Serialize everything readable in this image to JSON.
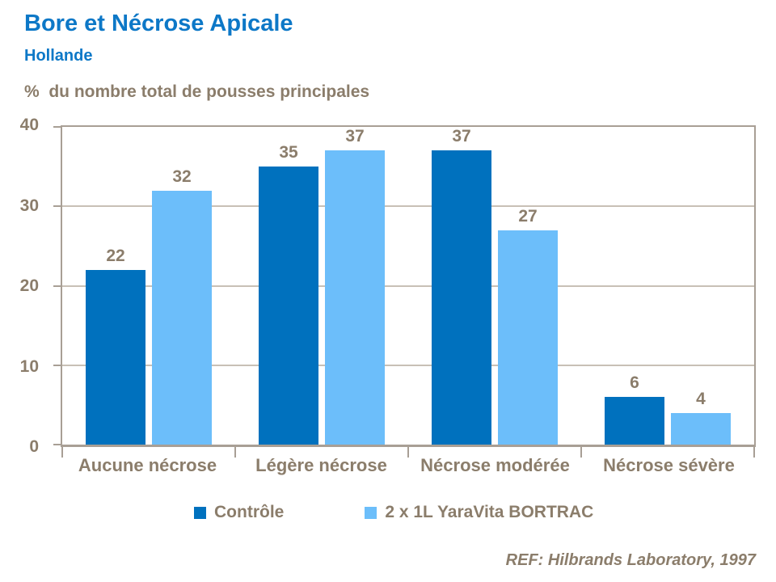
{
  "slide": {
    "title": "Bore et Nécrose Apicale",
    "subtitle": "Hollande",
    "axis_title": "%  du nombre total de pousses principales",
    "reference": "REF: Hilbrands Laboratory, 1997"
  },
  "colors": {
    "title_blue": "#0d78c7",
    "bar_dark": "#0071be",
    "bar_light": "#6cbefa",
    "text_taupe": "#8b7d6b",
    "gridline": "#c8c0b6",
    "axis_border": "#a89f95"
  },
  "chart_data": {
    "type": "bar",
    "title": "Bore et Nécrose Apicale — Hollande",
    "ylabel": "% du nombre total de pousses principales",
    "categories": [
      "Aucune nécrose",
      "Légère nécrose",
      "Nécrose modérée",
      "Nécrose sévère"
    ],
    "series": [
      {
        "name": "Contrôle",
        "color": "#0071be",
        "values": [
          22,
          35,
          37,
          6
        ]
      },
      {
        "name": "2 x 1L YaraVita BORTRAC",
        "color": "#6cbefa",
        "values": [
          32,
          37,
          27,
          4
        ]
      }
    ],
    "ylim": [
      0,
      40
    ],
    "yticks": [
      0,
      10,
      20,
      30,
      40
    ],
    "grid": true,
    "legend_position": "bottom"
  }
}
